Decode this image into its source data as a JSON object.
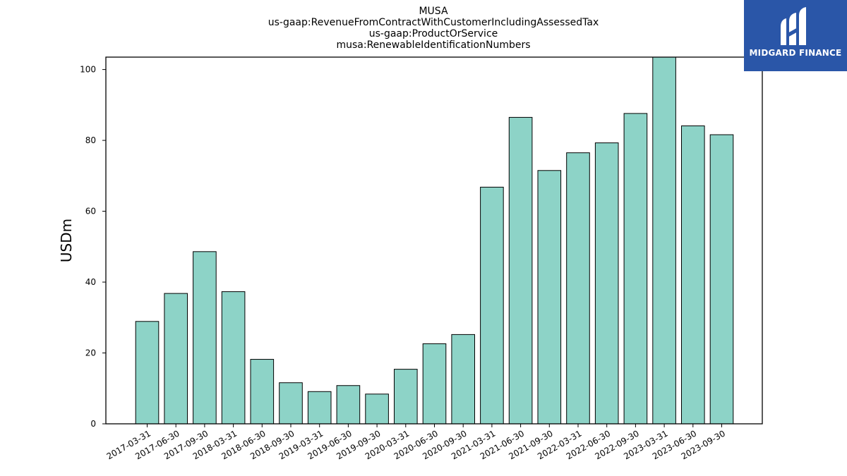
{
  "brand": {
    "name": "MIDGARD FINANCE",
    "color": "#2a56a8"
  },
  "chart_data": {
    "type": "bar",
    "title_lines": [
      "MUSA",
      "us-gaap:RevenueFromContractWithCustomerIncludingAssessedTax",
      "us-gaap:ProductOrService",
      "musa:RenewableIdentificationNumbers"
    ],
    "xlabel": "",
    "ylabel": "USDm",
    "ylim": [
      0,
      103.5
    ],
    "yticks": [
      0,
      20,
      40,
      60,
      80,
      100
    ],
    "grid": false,
    "bar_color": "#8dd3c7",
    "edge_color": "#000000",
    "categories": [
      "2017-03-31",
      "2017-06-30",
      "2017-09-30",
      "2018-03-31",
      "2018-06-30",
      "2018-09-30",
      "2019-03-31",
      "2019-06-30",
      "2019-09-30",
      "2020-03-31",
      "2020-06-30",
      "2020-09-30",
      "2021-03-31",
      "2021-06-30",
      "2021-09-30",
      "2022-03-31",
      "2022-06-30",
      "2022-09-30",
      "2023-03-31",
      "2023-06-30",
      "2023-09-30"
    ],
    "values": [
      28.9,
      36.8,
      48.6,
      37.3,
      18.2,
      11.6,
      9.1,
      10.8,
      8.4,
      15.4,
      22.6,
      25.2,
      66.8,
      86.5,
      71.5,
      76.5,
      79.3,
      87.6,
      103.5,
      84.1,
      81.6
    ]
  }
}
